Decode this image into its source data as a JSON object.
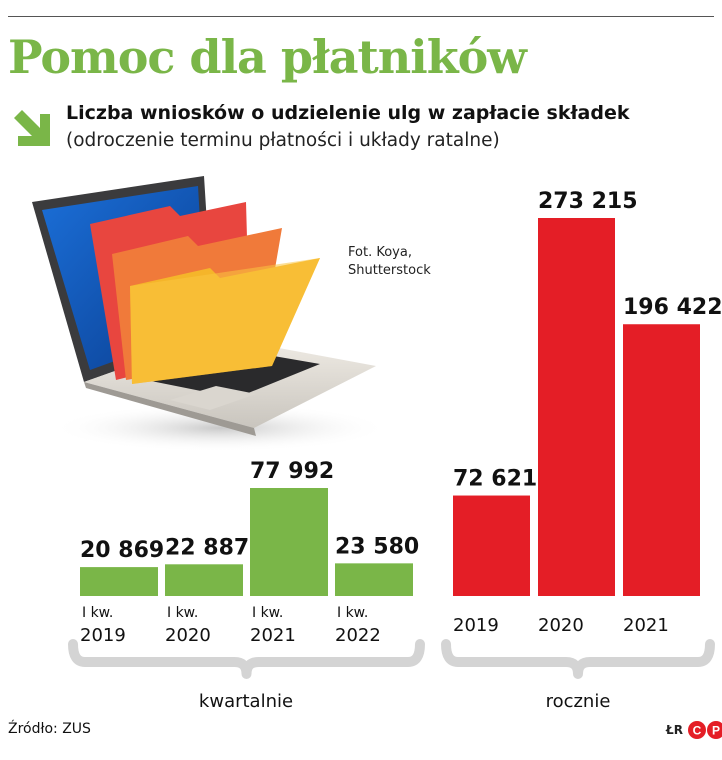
{
  "header": {
    "title": "Pomoc dla płatników",
    "subtitle": "Liczba wniosków o udzielenie ulg w zapłacie składek",
    "subtitle_note": "(odroczenie terminu płatności i układy ratalne)"
  },
  "photo": {
    "credit_line1": "Fot. Koya,",
    "credit_line2": "Shutterstock"
  },
  "chart_data": [
    {
      "type": "bar",
      "categories": [
        [
          "I kw.",
          "2019"
        ],
        [
          "I kw.",
          "2020"
        ],
        [
          "I kw.",
          "2021"
        ],
        [
          "I kw.",
          "2022"
        ]
      ],
      "values": [
        20869,
        22887,
        77992,
        23580
      ],
      "value_labels": [
        "20 869",
        "22 887",
        "77 992",
        "23 580"
      ],
      "group_label": "kwartalnie",
      "color": "#7ab648"
    },
    {
      "type": "bar",
      "categories": [
        [
          "2019"
        ],
        [
          "2020"
        ],
        [
          "2021"
        ]
      ],
      "values": [
        72621,
        273215,
        196422
      ],
      "value_labels": [
        "72 621",
        "273 215",
        "196 422"
      ],
      "group_label": "rocznie",
      "color": "#e41e26"
    }
  ],
  "footer": {
    "source": "Źródło: ZUS",
    "agency_initials": "ŁR",
    "agency_logo": "CP"
  },
  "colors": {
    "accent_green": "#7ab648",
    "accent_red": "#e41e26",
    "brace": "#d4d4d4"
  }
}
